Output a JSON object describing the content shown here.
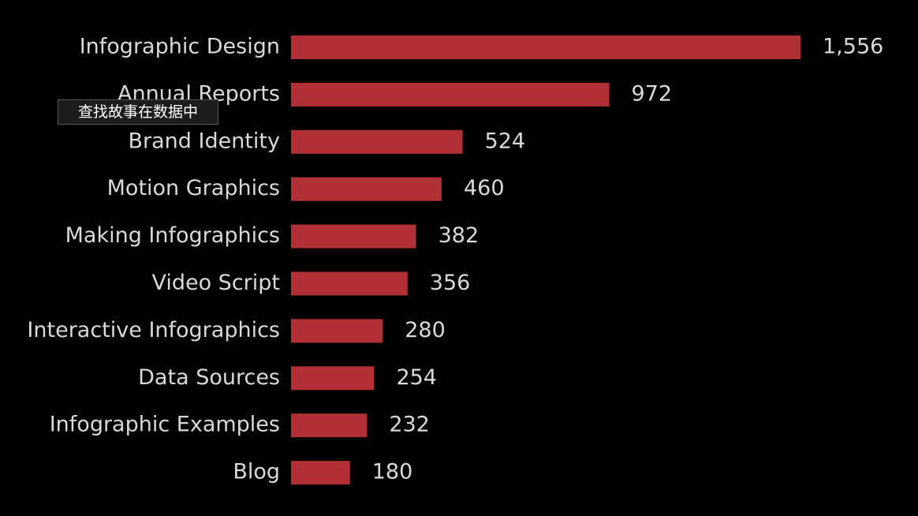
{
  "chart_data": {
    "type": "bar",
    "orientation": "horizontal",
    "categories": [
      "Infographic Design",
      "Annual Reports",
      "Brand Identity",
      "Motion Graphics",
      "Making Infographics",
      "Video Script",
      "Interactive Infographics",
      "Data Sources",
      "Infographic Examples",
      "Blog"
    ],
    "values": [
      1556,
      972,
      524,
      460,
      382,
      356,
      280,
      254,
      232,
      180
    ],
    "value_labels": [
      "1,556",
      "972",
      "524",
      "460",
      "382",
      "356",
      "280",
      "254",
      "232",
      "180"
    ],
    "color": "#b03035"
  },
  "tooltip": "查找故事在数据中"
}
